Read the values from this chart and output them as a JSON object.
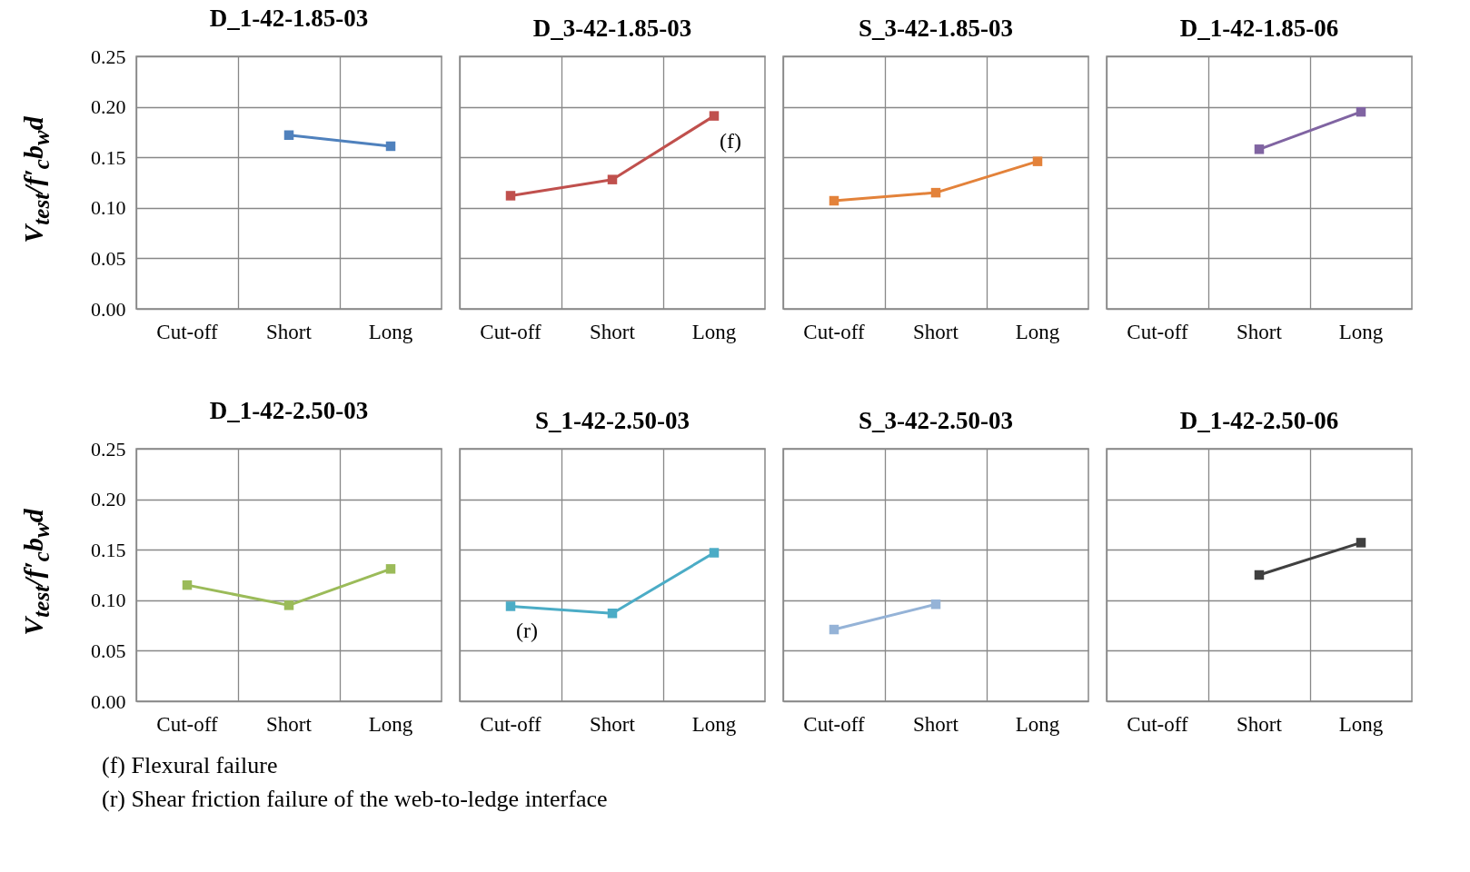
{
  "chart_data": [
    {
      "type": "line",
      "title": "D_1-42-1.85-03",
      "ylabel": "V$_{test}$/f′$_{c}$b$_{w}$d",
      "categories": [
        "Cut-off",
        "Short",
        "Long"
      ],
      "values": [
        null,
        0.172,
        0.161
      ],
      "color": "#4f81bd",
      "ylim": [
        0,
        0.25
      ],
      "yticks": [
        {
          "value": 0,
          "label": "0.00"
        },
        0.05,
        {
          "value": 0.1,
          "label": "0.10"
        },
        0.15,
        {
          "value": 0.2,
          "label": "0.20"
        },
        0.25
      ],
      "grid": true,
      "marker": "square",
      "annotations": [
        "(f) Flexural failure",
        "(r) Shear friction failure of the web-to-ledge interface"
      ]
    },
    {
      "type": "line",
      "title": "D_3-42-1.85-03",
      "categories": [
        "Cut-off",
        "Short",
        "Long"
      ],
      "values": [
        0.112,
        0.128,
        0.191
      ],
      "color": "#c0504d",
      "ylim": [
        0,
        0.25
      ],
      "yticks": [
        0,
        0.05,
        0.1,
        0.15,
        0.2,
        0.25
      ],
      "grid": true,
      "marker": "square",
      "tick_labels": "x",
      "annotations": [
        {
          "text": "(f)",
          "x": "Long",
          "y": 0.191
        }
      ]
    },
    {
      "type": "line",
      "title": "S_3-42-1.85-03",
      "categories": [
        "Cut-off",
        "Short",
        "Long"
      ],
      "values": [
        0.107,
        0.115,
        0.146
      ],
      "color": "#e3823a",
      "ylim": [
        0,
        0.25
      ],
      "yticks": [
        0,
        0.05,
        0.1,
        0.15,
        0.2,
        0.25
      ],
      "grid": true,
      "marker": "square",
      "tick_labels": "x"
    },
    {
      "type": "line",
      "title": "D_1-42-1.85-06",
      "categories": [
        "Cut-off",
        "Short",
        "Long"
      ],
      "values": [
        null,
        0.158,
        0.195
      ],
      "color": "#8064a2",
      "ylim": [
        0,
        0.25
      ],
      "yticks": [
        0,
        0.05,
        0.1,
        0.15,
        0.2,
        0.25
      ],
      "grid": true,
      "marker": "square",
      "tick_labels": "x"
    },
    {
      "type": "line",
      "title": "D_1-42-2.50-03",
      "ylabel": "V$_{test}$/f′$_{c}$b$_{w}$d",
      "categories": [
        "Cut-off",
        "Short",
        "Long"
      ],
      "values": [
        0.115,
        0.095,
        0.131
      ],
      "color": "#9bbb59",
      "ylim": [
        0,
        0.25
      ],
      "yticks": [
        {
          "value": 0,
          "label": "0.00"
        },
        0.05,
        {
          "value": 0.1,
          "label": "0.10"
        },
        0.15,
        {
          "value": 0.2,
          "label": "0.20"
        },
        0.25
      ],
      "grid": true,
      "marker": "square"
    },
    {
      "type": "line",
      "title": "S_1-42-2.50-03",
      "categories": [
        "Cut-off",
        "Short",
        "Long"
      ],
      "values": [
        0.094,
        0.087,
        0.147
      ],
      "color": "#4bacc6",
      "ylim": [
        0,
        0.25
      ],
      "yticks": [
        0,
        0.05,
        0.1,
        0.15,
        0.2,
        0.25
      ],
      "grid": true,
      "marker": "square",
      "tick_labels": "x",
      "annotations": [
        {
          "text": "(r)",
          "x": "Cut-off",
          "y": 0.094
        }
      ]
    },
    {
      "type": "line",
      "title": "S_3-42-2.50-03",
      "categories": [
        "Cut-off",
        "Short",
        "Long"
      ],
      "values": [
        0.071,
        0.096,
        null
      ],
      "color": "#95b3d7",
      "ylim": [
        0,
        0.25
      ],
      "yticks": [
        0,
        0.05,
        0.1,
        0.15,
        0.2,
        0.25
      ],
      "grid": true,
      "marker": "square",
      "tick_labels": "x"
    },
    {
      "type": "line",
      "title": "D_1-42-2.50-06",
      "categories": [
        "Cut-off",
        "Short",
        "Long"
      ],
      "values": [
        null,
        0.125,
        0.157
      ],
      "color": "#404040",
      "ylim": [
        0,
        0.25
      ],
      "yticks": [
        0,
        0.05,
        0.1,
        0.15,
        0.2,
        0.25
      ],
      "grid": true,
      "marker": "square",
      "tick_labels": "x"
    }
  ]
}
